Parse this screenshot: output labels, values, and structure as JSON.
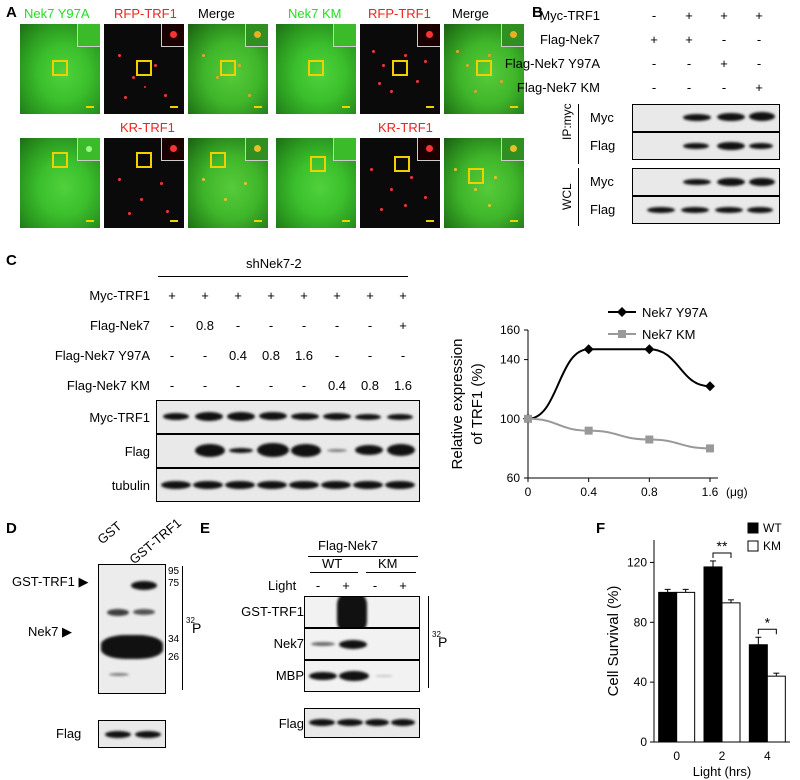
{
  "panels": {
    "A": "A",
    "B": "B",
    "C": "C",
    "D": "D",
    "E": "E",
    "F": "F"
  },
  "panelA": {
    "top_left": [
      "Nek7 Y97A",
      "RFP-TRF1",
      "Merge"
    ],
    "top_right": [
      "Nek7 KM",
      "RFP-TRF1",
      "Merge"
    ],
    "bottom_left_label": "KR-TRF1",
    "bottom_right_label": "KR-TRF1",
    "label_colors": {
      "green": "#22dd22",
      "red": "#ee2222"
    }
  },
  "panelB": {
    "rows": [
      {
        "label": "Myc-TRF1",
        "signs": [
          "-",
          "+",
          "+",
          "+"
        ]
      },
      {
        "label": "Flag-Nek7",
        "signs": [
          "+",
          "+",
          "-",
          "-"
        ]
      },
      {
        "label": "Flag-Nek7 Y97A",
        "signs": [
          "-",
          "-",
          "+",
          "-"
        ]
      },
      {
        "label": "Flag-Nek7 KM",
        "signs": [
          "-",
          "-",
          "-",
          "+"
        ]
      }
    ],
    "ip_label": "IP:myc",
    "wcl_label": "WCL",
    "blots": [
      "Myc",
      "Flag",
      "Myc",
      "Flag"
    ]
  },
  "panelC": {
    "group": "shNek7-2",
    "rows": [
      {
        "label": "Myc-TRF1",
        "signs": [
          "+",
          "+",
          "+",
          "+",
          "+",
          "+",
          "+",
          "+"
        ]
      },
      {
        "label": "Flag-Nek7",
        "signs": [
          "-",
          "0.8",
          "-",
          "-",
          "-",
          "-",
          "-",
          "+"
        ]
      },
      {
        "label": "Flag-Nek7 Y97A",
        "signs": [
          "-",
          "-",
          "0.4",
          "0.8",
          "1.6",
          "-",
          "-",
          "-"
        ]
      },
      {
        "label": "Flag-Nek7 KM",
        "signs": [
          "-",
          "-",
          "-",
          "-",
          "-",
          "0.4",
          "0.8",
          "1.6"
        ]
      }
    ],
    "blots": [
      "Myc-TRF1",
      "Flag",
      "tubulin"
    ]
  },
  "chart_data": [
    {
      "type": "line",
      "ylabel": "Relative expression of TRF1 (%)",
      "ylabel_lines": [
        "Relative expression",
        "of TRF1 (%)"
      ],
      "xlabel": "(μg)",
      "x": [
        0,
        0.4,
        0.8,
        1.6
      ],
      "x_ticks": [
        "0",
        "0.4",
        "0.8",
        "1.6"
      ],
      "y_ticks": [
        60,
        100,
        140,
        160
      ],
      "ylim": [
        60,
        160
      ],
      "series": [
        {
          "name": "Nek7 Y97A",
          "values": [
            100,
            147,
            147,
            122
          ],
          "color": "#000000",
          "marker": "diamond"
        },
        {
          "name": "Nek7 KM",
          "values": [
            100,
            92,
            86,
            80
          ],
          "color": "#999999",
          "marker": "square"
        }
      ],
      "legend": "top-right"
    },
    {
      "type": "bar",
      "ylabel": "Cell Survival (%)",
      "xlabel": "Light (hrs)",
      "categories": [
        "0",
        "2",
        "4"
      ],
      "y_ticks": [
        0,
        40,
        80,
        120
      ],
      "ylim": [
        0,
        135
      ],
      "series": [
        {
          "name": "WT",
          "values": [
            100,
            117,
            65
          ],
          "errors": [
            2,
            4,
            5
          ],
          "color": "#000000"
        },
        {
          "name": "KM",
          "values": [
            100,
            93,
            44
          ],
          "errors": [
            2,
            2,
            2
          ],
          "color": "#ffffff"
        }
      ],
      "significance": [
        {
          "category": "2",
          "mark": "**"
        },
        {
          "category": "4",
          "mark": "*"
        }
      ],
      "legend": "top-right"
    }
  ],
  "panelD": {
    "lanes": [
      "GST",
      "GST-TRF1"
    ],
    "markers": [
      "95",
      "75",
      "34",
      "26"
    ],
    "arrows": [
      "GST-TRF1 ▶",
      "Nek7 ▶"
    ],
    "isotope_sup": "32",
    "isotope": "P",
    "flag": "Flag"
  },
  "panelE": {
    "header": "Flag-Nek7",
    "groups": [
      "WT",
      "KM"
    ],
    "light_label": "Light",
    "light_signs": [
      "-",
      "+",
      "-",
      "+"
    ],
    "blots": [
      "GST-TRF1",
      "Nek7",
      "MBP",
      "Flag"
    ],
    "isotope_sup": "32",
    "isotope": "P"
  }
}
